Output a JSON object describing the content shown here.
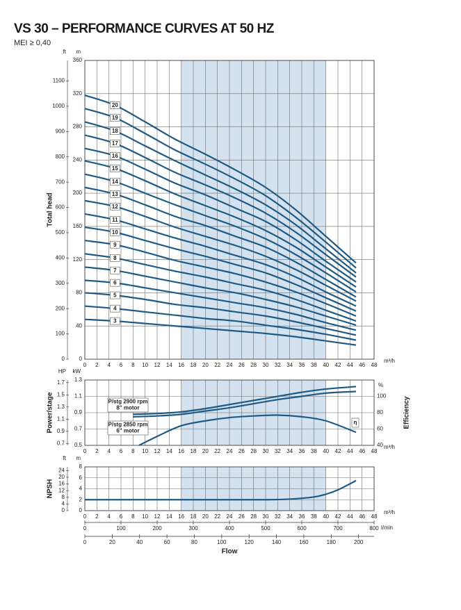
{
  "title": "VS 30 – PERFORMANCE CURVES AT 50 HZ",
  "subtitle": "MEI ≥ 0,40",
  "chart_data": [
    {
      "type": "line",
      "ylabel": "Total head",
      "y_unit": "m",
      "y2_unit": "ft",
      "x_unit": "m³/h",
      "xlim": [
        0,
        48
      ],
      "xticks": [
        0,
        2,
        4,
        6,
        8,
        10,
        12,
        14,
        16,
        18,
        20,
        22,
        24,
        26,
        28,
        30,
        32,
        34,
        36,
        38,
        40,
        42,
        44,
        46,
        48
      ],
      "ylim": [
        0,
        360
      ],
      "yticks": [
        0,
        40,
        80,
        120,
        160,
        200,
        240,
        280,
        320,
        360
      ],
      "y2lim": [
        0,
        1181.1
      ],
      "y2ticks": [
        0,
        100,
        200,
        300,
        400,
        500,
        600,
        700,
        800,
        900,
        1000,
        1100
      ],
      "shaded_xrange": [
        16,
        40
      ],
      "grid": true,
      "x": [
        0,
        5,
        10,
        15,
        20,
        25,
        30,
        35,
        40,
        45
      ],
      "series": [
        {
          "name": "3",
          "color": "#1d5a85",
          "values": [
            48,
            46,
            43,
            40,
            37,
            34,
            31,
            27,
            22,
            17
          ]
        },
        {
          "name": "4",
          "color": "#1d5a85",
          "values": [
            64,
            61,
            57,
            53,
            49,
            46,
            41,
            36,
            30,
            23
          ]
        },
        {
          "name": "5",
          "color": "#1d5a85",
          "values": [
            80,
            77,
            72,
            66,
            62,
            57,
            52,
            45,
            37,
            29
          ]
        },
        {
          "name": "6",
          "color": "#1d5a85",
          "values": [
            95,
            92,
            86,
            80,
            74,
            68,
            62,
            54,
            44,
            35
          ]
        },
        {
          "name": "7",
          "color": "#1d5a85",
          "values": [
            111,
            107,
            100,
            93,
            86,
            80,
            72,
            63,
            52,
            41
          ]
        },
        {
          "name": "8",
          "color": "#1d5a85",
          "values": [
            127,
            122,
            114,
            106,
            99,
            91,
            83,
            72,
            59,
            46
          ]
        },
        {
          "name": "9",
          "color": "#1d5a85",
          "values": [
            143,
            138,
            129,
            119,
            111,
            103,
            93,
            81,
            67,
            52
          ]
        },
        {
          "name": "10",
          "color": "#1d5a85",
          "values": [
            159,
            153,
            143,
            133,
            124,
            114,
            104,
            90,
            74,
            58
          ]
        },
        {
          "name": "11",
          "color": "#1d5a85",
          "values": [
            175,
            168,
            157,
            146,
            136,
            125,
            114,
            99,
            81,
            64
          ]
        },
        {
          "name": "12",
          "color": "#1d5a85",
          "values": [
            191,
            184,
            172,
            159,
            148,
            137,
            124,
            108,
            89,
            70
          ]
        },
        {
          "name": "13",
          "color": "#1d5a85",
          "values": [
            207,
            199,
            186,
            172,
            161,
            148,
            135,
            117,
            96,
            75
          ]
        },
        {
          "name": "14",
          "color": "#1d5a85",
          "values": [
            223,
            214,
            200,
            186,
            173,
            160,
            145,
            126,
            104,
            81
          ]
        },
        {
          "name": "15",
          "color": "#1d5a85",
          "values": [
            239,
            230,
            215,
            199,
            185,
            171,
            155,
            135,
            111,
            87
          ]
        },
        {
          "name": "16",
          "color": "#1d5a85",
          "values": [
            254,
            245,
            229,
            212,
            198,
            182,
            166,
            144,
            118,
            93
          ]
        },
        {
          "name": "17",
          "color": "#1d5a85",
          "values": [
            270,
            260,
            243,
            225,
            210,
            194,
            176,
            153,
            126,
            99
          ]
        },
        {
          "name": "18",
          "color": "#1d5a85",
          "values": [
            286,
            275,
            257,
            239,
            222,
            205,
            186,
            162,
            133,
            104
          ]
        },
        {
          "name": "19",
          "color": "#1d5a85",
          "values": [
            302,
            291,
            272,
            252,
            235,
            217,
            197,
            171,
            141,
            110
          ]
        },
        {
          "name": "20",
          "color": "#1d5a85",
          "values": [
            318,
            306,
            286,
            265,
            247,
            228,
            207,
            180,
            148,
            116
          ]
        }
      ]
    },
    {
      "type": "line",
      "ylabel": "Power/stage",
      "y_unit": "kW",
      "y3_unit": "HP",
      "y2label": "Efficiency",
      "y2_unit": "%",
      "x_unit": "m³/h",
      "xlim": [
        0,
        48
      ],
      "xticks": [
        0,
        2,
        4,
        6,
        8,
        10,
        12,
        14,
        16,
        18,
        20,
        22,
        24,
        26,
        28,
        30,
        32,
        34,
        36,
        38,
        40,
        42,
        44,
        46,
        48
      ],
      "ylim": [
        0.5,
        1.3
      ],
      "yticks": [
        0.5,
        0.7,
        0.9,
        1.1,
        1.3
      ],
      "y3lim": [
        0.6705,
        1.7433
      ],
      "y3ticks": [
        0.7,
        0.9,
        1.1,
        1.3,
        1.5,
        1.7
      ],
      "y2lim": [
        40,
        120
      ],
      "y2ticks": [
        40,
        60,
        80,
        100
      ],
      "shaded_xrange": [
        16,
        40
      ],
      "grid": true,
      "series": [
        {
          "name": "P/stg 2900 rpm",
          "note": "8\" motor",
          "color": "#1d5a85",
          "x": [
            8,
            12,
            16,
            20,
            24,
            28,
            32,
            36,
            40,
            45
          ],
          "values": [
            0.88,
            0.89,
            0.91,
            0.95,
            1.0,
            1.05,
            1.1,
            1.15,
            1.19,
            1.22
          ]
        },
        {
          "name": "P/stg 2850 rpm",
          "note": "6\" motor",
          "color": "#1d5a85",
          "x": [
            8,
            12,
            16,
            20,
            24,
            28,
            32,
            36,
            40,
            45
          ],
          "values": [
            0.85,
            0.86,
            0.88,
            0.92,
            0.96,
            1.01,
            1.06,
            1.1,
            1.14,
            1.16
          ]
        },
        {
          "name": "η",
          "axis": "y2",
          "color": "#1d5a85",
          "x": [
            9,
            12,
            16,
            20,
            24,
            28,
            32,
            36,
            40,
            45
          ],
          "values": [
            40,
            51,
            64,
            70,
            74,
            76,
            77,
            75,
            70,
            56
          ]
        }
      ]
    },
    {
      "type": "line",
      "ylabel": "NPSH",
      "y_unit": "m",
      "y2_unit": "ft",
      "x_unit": "m³/h",
      "xlim": [
        0,
        48
      ],
      "xticks": [
        0,
        2,
        4,
        6,
        8,
        10,
        12,
        14,
        16,
        18,
        20,
        22,
        24,
        26,
        28,
        30,
        32,
        34,
        36,
        38,
        40,
        42,
        44,
        46,
        48
      ],
      "ylim": [
        0,
        8
      ],
      "yticks": [
        0,
        2,
        4,
        6,
        8
      ],
      "y2lim": [
        0,
        26.25
      ],
      "y2ticks": [
        0,
        4,
        8,
        12,
        16,
        20,
        24
      ],
      "shaded_xrange": [
        16,
        40
      ],
      "grid": true,
      "color": "#1d5a85",
      "x": [
        0,
        10,
        20,
        30,
        34,
        38,
        40,
        42,
        44,
        45
      ],
      "values": [
        2,
        2,
        2,
        2,
        2.1,
        2.5,
        3,
        3.8,
        4.9,
        5.5
      ],
      "x2_unit": "l/min",
      "x2lim": [
        0,
        800
      ],
      "x2ticks": [
        0,
        100,
        200,
        300,
        400,
        500,
        600,
        700,
        800
      ],
      "x3lim": [
        0,
        211.34
      ],
      "x3ticks": [
        0,
        20,
        40,
        60,
        80,
        100,
        120,
        140,
        160,
        180,
        200
      ],
      "flow_label": "Flow"
    }
  ]
}
